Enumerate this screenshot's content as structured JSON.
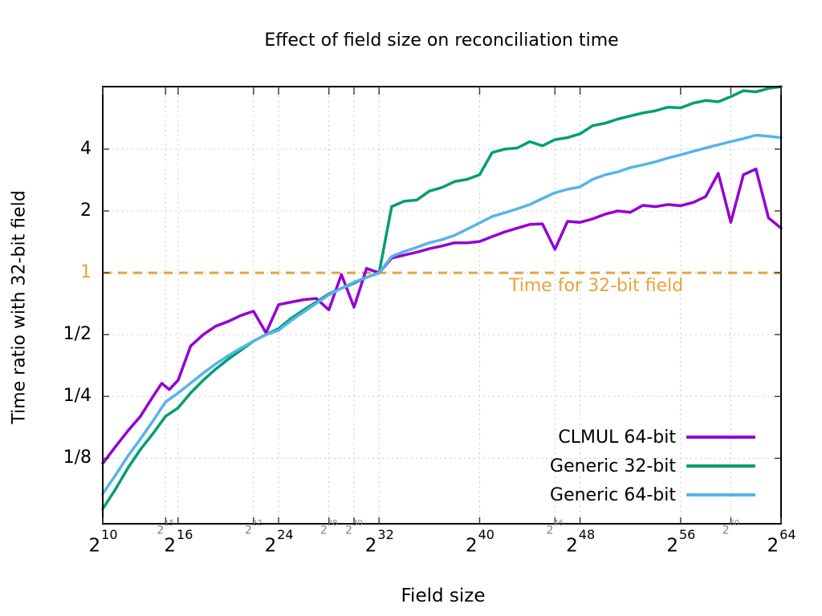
{
  "chart_data": {
    "type": "line",
    "title": "Effect of field size on reconciliation time",
    "xlabel": "Field size",
    "ylabel": "Time ratio with 32-bit field",
    "x_scale": "log2",
    "y_scale": "log2",
    "x_domain_exponents": [
      10,
      64
    ],
    "ylim": [
      0.06,
      8.06
    ],
    "grid": true,
    "legend_position": "inside-bottom-right",
    "x_tick_base": "2",
    "x_ticks_major": [
      10,
      16,
      24,
      32,
      40,
      48,
      56,
      64
    ],
    "x_ticks_minor": [
      15,
      22,
      28,
      30,
      46,
      60
    ],
    "y_ticks": [
      {
        "value": 4,
        "label": "4",
        "highlight": false
      },
      {
        "value": 2,
        "label": "2",
        "highlight": false
      },
      {
        "value": 1,
        "label": "1",
        "highlight": true
      },
      {
        "value": 0.5,
        "label": "1/2",
        "highlight": false
      },
      {
        "value": 0.25,
        "label": "1/4",
        "highlight": false
      },
      {
        "value": 0.125,
        "label": "1/8",
        "highlight": false
      }
    ],
    "reference_line": {
      "value": 1,
      "label": "Time for 32-bit field",
      "color": "#E6A33C",
      "style": "dashed"
    },
    "series": [
      {
        "name": "CLMUL 64-bit",
        "color": "#9400D3",
        "points": [
          [
            10,
            0.118
          ],
          [
            11,
            0.142
          ],
          [
            12,
            0.17
          ],
          [
            13,
            0.2
          ],
          [
            14,
            0.25
          ],
          [
            14.7,
            0.29
          ],
          [
            15.3,
            0.27
          ],
          [
            16,
            0.3
          ],
          [
            17,
            0.44
          ],
          [
            18,
            0.5
          ],
          [
            19,
            0.55
          ],
          [
            20,
            0.58
          ],
          [
            21,
            0.62
          ],
          [
            22,
            0.65
          ],
          [
            23,
            0.51
          ],
          [
            24,
            0.7
          ],
          [
            25,
            0.72
          ],
          [
            26,
            0.74
          ],
          [
            27,
            0.75
          ],
          [
            28,
            0.66
          ],
          [
            29,
            0.98
          ],
          [
            30,
            0.68
          ],
          [
            31,
            1.05
          ],
          [
            32,
            1.0
          ],
          [
            33,
            1.18
          ],
          [
            34,
            1.22
          ],
          [
            35,
            1.26
          ],
          [
            36,
            1.31
          ],
          [
            37,
            1.35
          ],
          [
            38,
            1.4
          ],
          [
            39,
            1.4
          ],
          [
            40,
            1.42
          ],
          [
            41,
            1.5
          ],
          [
            42,
            1.58
          ],
          [
            43,
            1.65
          ],
          [
            44,
            1.72
          ],
          [
            45,
            1.73
          ],
          [
            46,
            1.3
          ],
          [
            47,
            1.78
          ],
          [
            48,
            1.76
          ],
          [
            49,
            1.83
          ],
          [
            50,
            1.93
          ],
          [
            51,
            2.0
          ],
          [
            52,
            1.97
          ],
          [
            53,
            2.13
          ],
          [
            54,
            2.1
          ],
          [
            55,
            2.15
          ],
          [
            56,
            2.12
          ],
          [
            57,
            2.2
          ],
          [
            58,
            2.35
          ],
          [
            59,
            3.05
          ],
          [
            60,
            1.76
          ],
          [
            61,
            3.0
          ],
          [
            62,
            3.2
          ],
          [
            63,
            1.85
          ],
          [
            64,
            1.65
          ]
        ]
      },
      {
        "name": "Generic 32-bit",
        "color": "#009E73",
        "points": [
          [
            10,
            0.071
          ],
          [
            11,
            0.088
          ],
          [
            12,
            0.112
          ],
          [
            13,
            0.138
          ],
          [
            14,
            0.165
          ],
          [
            15,
            0.2
          ],
          [
            16,
            0.22
          ],
          [
            17,
            0.26
          ],
          [
            18,
            0.3
          ],
          [
            19,
            0.34
          ],
          [
            20,
            0.38
          ],
          [
            21,
            0.42
          ],
          [
            22,
            0.465
          ],
          [
            23,
            0.5
          ],
          [
            24,
            0.535
          ],
          [
            25,
            0.6
          ],
          [
            26,
            0.66
          ],
          [
            27,
            0.72
          ],
          [
            28,
            0.79
          ],
          [
            29,
            0.84
          ],
          [
            30,
            0.89
          ],
          [
            31,
            0.95
          ],
          [
            32,
            1.0
          ],
          [
            33,
            2.1
          ],
          [
            34,
            2.23
          ],
          [
            35,
            2.26
          ],
          [
            36,
            2.5
          ],
          [
            37,
            2.6
          ],
          [
            38,
            2.78
          ],
          [
            39,
            2.85
          ],
          [
            40,
            3.0
          ],
          [
            41,
            3.85
          ],
          [
            42,
            4.0
          ],
          [
            43,
            4.05
          ],
          [
            44,
            4.35
          ],
          [
            45,
            4.15
          ],
          [
            46,
            4.45
          ],
          [
            47,
            4.55
          ],
          [
            48,
            4.75
          ],
          [
            49,
            5.2
          ],
          [
            50,
            5.35
          ],
          [
            51,
            5.6
          ],
          [
            52,
            5.8
          ],
          [
            53,
            6.0
          ],
          [
            54,
            6.15
          ],
          [
            55,
            6.4
          ],
          [
            56,
            6.35
          ],
          [
            57,
            6.7
          ],
          [
            58,
            6.9
          ],
          [
            59,
            6.8
          ],
          [
            60,
            7.2
          ],
          [
            61,
            7.7
          ],
          [
            62,
            7.6
          ],
          [
            63,
            7.9
          ],
          [
            64,
            8.05
          ]
        ]
      },
      {
        "name": "Generic 64-bit",
        "color": "#56B4E9",
        "points": [
          [
            10,
            0.084
          ],
          [
            11,
            0.103
          ],
          [
            12,
            0.128
          ],
          [
            13,
            0.155
          ],
          [
            14,
            0.19
          ],
          [
            15,
            0.235
          ],
          [
            16,
            0.26
          ],
          [
            17,
            0.29
          ],
          [
            18,
            0.325
          ],
          [
            19,
            0.36
          ],
          [
            20,
            0.395
          ],
          [
            21,
            0.43
          ],
          [
            22,
            0.465
          ],
          [
            23,
            0.5
          ],
          [
            24,
            0.525
          ],
          [
            25,
            0.585
          ],
          [
            26,
            0.645
          ],
          [
            27,
            0.71
          ],
          [
            28,
            0.78
          ],
          [
            29,
            0.84
          ],
          [
            30,
            0.9
          ],
          [
            31,
            0.95
          ],
          [
            32,
            1.0
          ],
          [
            33,
            1.2
          ],
          [
            34,
            1.27
          ],
          [
            35,
            1.33
          ],
          [
            36,
            1.4
          ],
          [
            37,
            1.45
          ],
          [
            38,
            1.52
          ],
          [
            39,
            1.63
          ],
          [
            40,
            1.75
          ],
          [
            41,
            1.88
          ],
          [
            42,
            1.96
          ],
          [
            43,
            2.05
          ],
          [
            44,
            2.15
          ],
          [
            45,
            2.3
          ],
          [
            46,
            2.45
          ],
          [
            47,
            2.55
          ],
          [
            48,
            2.62
          ],
          [
            49,
            2.85
          ],
          [
            50,
            3.0
          ],
          [
            51,
            3.1
          ],
          [
            52,
            3.25
          ],
          [
            53,
            3.35
          ],
          [
            54,
            3.47
          ],
          [
            55,
            3.62
          ],
          [
            56,
            3.75
          ],
          [
            57,
            3.9
          ],
          [
            58,
            4.05
          ],
          [
            59,
            4.2
          ],
          [
            60,
            4.35
          ],
          [
            61,
            4.5
          ],
          [
            62,
            4.68
          ],
          [
            63,
            4.62
          ],
          [
            64,
            4.55
          ]
        ]
      }
    ]
  },
  "colors": {
    "grid": "#cccccc",
    "border": "#000000",
    "tick": "#404040",
    "minor_tick_label": "#808080",
    "reference": "#E6A33C"
  }
}
